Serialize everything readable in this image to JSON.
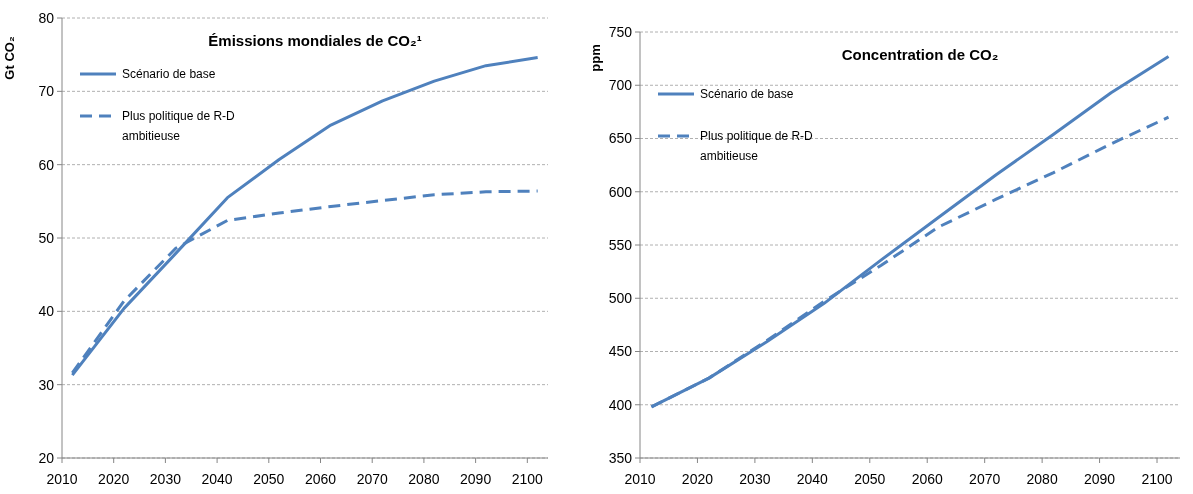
{
  "chart_data": [
    {
      "type": "line",
      "title": "Émissions mondiales de CO₂¹",
      "ylabel": "Gt CO₂",
      "x": [
        2012,
        2022,
        2032,
        2042,
        2052,
        2062,
        2072,
        2082,
        2092,
        2102
      ],
      "xlim": [
        2010,
        2104
      ],
      "xticks": [
        2010,
        2020,
        2030,
        2040,
        2050,
        2060,
        2070,
        2080,
        2090,
        2100
      ],
      "ylim": [
        20,
        80
      ],
      "yticks": [
        20,
        30,
        40,
        50,
        60,
        70,
        80
      ],
      "grid": "y",
      "legend": "top left",
      "series": [
        {
          "name": "Scénario de base",
          "color": "#4f81bd",
          "line_style": "solid",
          "values": [
            31.3,
            40.4,
            47.9,
            55.5,
            60.7,
            65.4,
            68.7,
            71.4,
            73.5,
            74.6
          ]
        },
        {
          "name": "Plus politique de R-D ambitieuse",
          "color": "#4f81bd",
          "line_style": "dashed",
          "values": [
            31.6,
            41.4,
            48.6,
            52.4,
            53.4,
            54.3,
            55.1,
            55.9,
            56.3,
            56.4
          ]
        }
      ]
    },
    {
      "type": "line",
      "title": "Concentration de CO₂",
      "ylabel": "ppm",
      "x": [
        2012,
        2022,
        2032,
        2042,
        2052,
        2062,
        2072,
        2082,
        2092,
        2102
      ],
      "xlim": [
        2010,
        2104
      ],
      "xticks": [
        2010,
        2020,
        2030,
        2040,
        2050,
        2060,
        2070,
        2080,
        2090,
        2100
      ],
      "ylim": [
        350,
        750
      ],
      "yticks": [
        350,
        400,
        450,
        500,
        550,
        600,
        650,
        700,
        750
      ],
      "grid": "y",
      "legend": "top left",
      "series": [
        {
          "name": "Scénario de base",
          "color": "#4f81bd",
          "line_style": "solid",
          "values": [
            398,
            425,
            459,
            495,
            536,
            576,
            616,
            654,
            693,
            727
          ]
        },
        {
          "name": "Plus politique de R-D ambitieuse",
          "color": "#4f81bd",
          "line_style": "dashed",
          "values": [
            398,
            425,
            460,
            497,
            531,
            567,
            593,
            618,
            645,
            670
          ]
        }
      ]
    }
  ]
}
